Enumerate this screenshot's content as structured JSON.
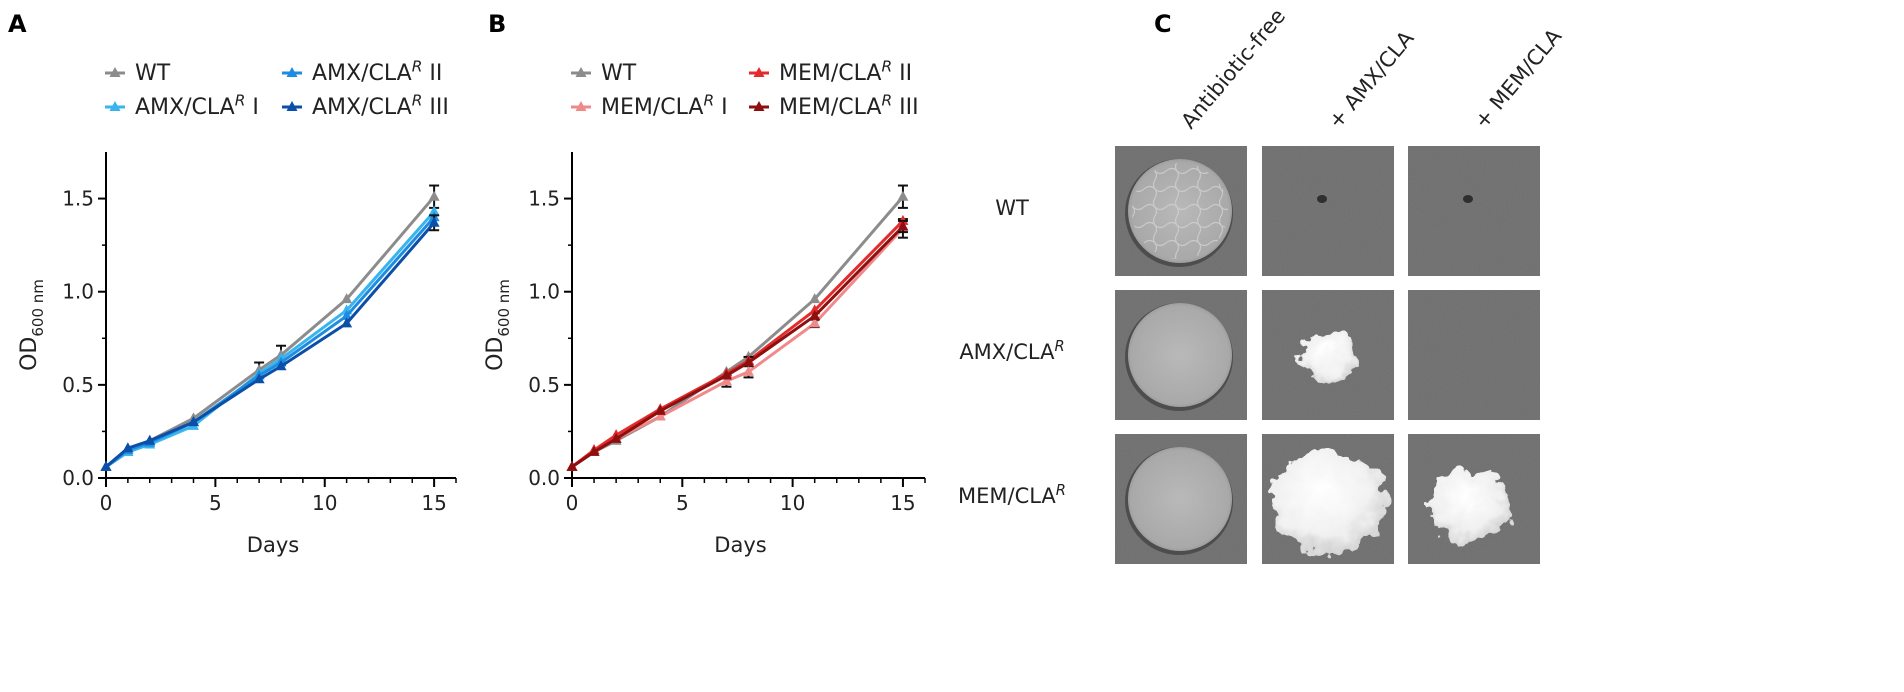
{
  "colors": {
    "wt": "#8c8c8c",
    "amx1": "#38b4ef",
    "amx2": "#1e8ce0",
    "amx3": "#0b4fa8",
    "mem1": "#f08a8a",
    "mem2": "#e32b2b",
    "mem3": "#8e0f0f",
    "errorbar": "#111111"
  },
  "chart_data": [
    {
      "panel_label": "A",
      "type": "line",
      "xlabel": "Days",
      "ylabel_main": "OD",
      "ylabel_sub": "600 nm",
      "xlim": [
        0,
        16
      ],
      "ylim": [
        0,
        1.75
      ],
      "xticks": [
        0,
        5,
        10,
        15
      ],
      "xtick_labels": [
        "0",
        "5",
        "10",
        "15"
      ],
      "yticks": [
        0,
        0.5,
        1.0,
        1.5
      ],
      "ytick_labels": [
        "0.0",
        "0.5",
        "1.0",
        "1.5"
      ],
      "x": [
        0,
        1,
        2,
        4,
        7,
        8,
        11,
        15
      ],
      "series": [
        {
          "key": "wt",
          "name": "WT",
          "base": "WT",
          "sup": "",
          "suffix": "",
          "values": [
            0.06,
            0.14,
            0.2,
            0.32,
            0.58,
            0.66,
            0.96,
            1.51
          ],
          "err": [
            0,
            0,
            0,
            0,
            0.04,
            0.05,
            0,
            0.06
          ]
        },
        {
          "key": "amx1",
          "name": "AMX/CLA R I",
          "base": "AMX/CLA",
          "sup": "R",
          "suffix": " I",
          "values": [
            0.06,
            0.14,
            0.18,
            0.28,
            0.56,
            0.64,
            0.9,
            1.43
          ],
          "err": [
            0,
            0,
            0,
            0,
            0,
            0,
            0,
            0
          ]
        },
        {
          "key": "amx2",
          "name": "AMX/CLA R II",
          "base": "AMX/CLA",
          "sup": "R",
          "suffix": " II",
          "values": [
            0.06,
            0.15,
            0.19,
            0.3,
            0.55,
            0.62,
            0.87,
            1.4
          ],
          "err": [
            0,
            0,
            0,
            0,
            0,
            0,
            0,
            0
          ]
        },
        {
          "key": "amx3",
          "name": "AMX/CLA R III",
          "base": "AMX/CLA",
          "sup": "R",
          "suffix": " III",
          "values": [
            0.06,
            0.16,
            0.2,
            0.3,
            0.53,
            0.6,
            0.83,
            1.37
          ],
          "err": [
            0,
            0,
            0,
            0,
            0,
            0,
            0,
            0.04
          ]
        }
      ]
    },
    {
      "panel_label": "B",
      "type": "line",
      "xlabel": "Days",
      "ylabel_main": "OD",
      "ylabel_sub": "600 nm",
      "xlim": [
        0,
        16
      ],
      "ylim": [
        0,
        1.75
      ],
      "xticks": [
        0,
        5,
        10,
        15
      ],
      "xtick_labels": [
        "0",
        "5",
        "10",
        "15"
      ],
      "yticks": [
        0,
        0.5,
        1.0,
        1.5
      ],
      "ytick_labels": [
        "0.0",
        "0.5",
        "1.0",
        "1.5"
      ],
      "x": [
        0,
        1,
        2,
        4,
        7,
        8,
        11,
        15
      ],
      "series": [
        {
          "key": "wt",
          "name": "WT",
          "base": "WT",
          "sup": "",
          "suffix": "",
          "values": [
            0.06,
            0.14,
            0.2,
            0.33,
            0.57,
            0.65,
            0.96,
            1.51
          ],
          "err": [
            0,
            0,
            0,
            0,
            0,
            0,
            0,
            0.06
          ]
        },
        {
          "key": "mem1",
          "name": "MEM/CLA R I",
          "base": "MEM/CLA",
          "sup": "R",
          "suffix": " I",
          "values": [
            0.06,
            0.14,
            0.21,
            0.33,
            0.52,
            0.57,
            0.83,
            1.34
          ],
          "err": [
            0,
            0,
            0,
            0,
            0.03,
            0.03,
            0.02,
            0.05
          ]
        },
        {
          "key": "mem2",
          "name": "MEM/CLA R II",
          "base": "MEM/CLA",
          "sup": "R",
          "suffix": " II",
          "values": [
            0.06,
            0.15,
            0.23,
            0.37,
            0.56,
            0.63,
            0.9,
            1.38
          ],
          "err": [
            0,
            0,
            0,
            0,
            0,
            0.02,
            0,
            0
          ]
        },
        {
          "key": "mem3",
          "name": "MEM/CLA R III",
          "base": "MEM/CLA",
          "sup": "R",
          "suffix": " III",
          "values": [
            0.06,
            0.14,
            0.21,
            0.36,
            0.55,
            0.62,
            0.87,
            1.35
          ],
          "err": [
            0,
            0,
            0,
            0,
            0,
            0,
            0,
            0.03
          ]
        }
      ]
    }
  ],
  "panel_c": {
    "panel_label": "C",
    "columns": [
      "Antibiotic-free",
      "+ AMX/CLA",
      "+ MEM/CLA"
    ],
    "rows": [
      {
        "base": "WT",
        "sup": ""
      },
      {
        "base": "AMX/CLA",
        "sup": "R"
      },
      {
        "base": "MEM/CLA",
        "sup": "R"
      }
    ],
    "growth": [
      [
        "film",
        "none",
        "none"
      ],
      [
        "film",
        "small",
        "none"
      ],
      [
        "film",
        "large",
        "medium"
      ]
    ]
  }
}
